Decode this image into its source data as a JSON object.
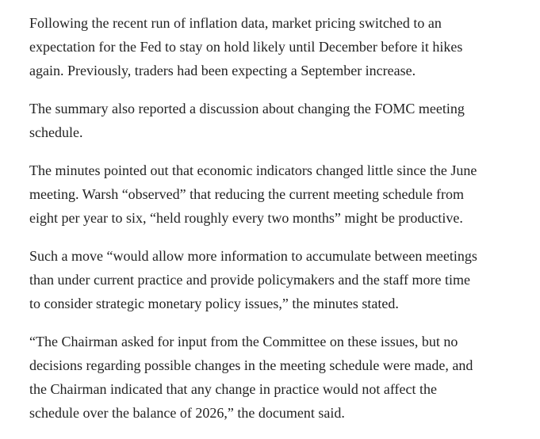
{
  "article": {
    "paragraphs": [
      {
        "lines": [
          "Following the recent run of inflation data, market pricing switched to an",
          "expectation for the Fed to stay on hold likely until December before it hikes",
          "again. Previously, traders had been expecting a September increase."
        ]
      },
      {
        "lines": [
          "The summary also reported a discussion about changing the FOMC meeting",
          "schedule."
        ]
      },
      {
        "lines": [
          "The minutes pointed out that economic indicators changed little since the June",
          "meeting. Warsh “observed” that reducing the current meeting schedule from",
          "eight per year to six, “held roughly every two months” might be productive."
        ]
      },
      {
        "lines": [
          "Such a move “would allow more information to accumulate between meetings",
          "than under current practice and provide policymakers and the staff more time",
          "to consider strategic monetary policy issues,” the minutes stated."
        ]
      },
      {
        "lines": [
          "“The Chairman asked for input from the Committee on these issues, but no",
          "decisions regarding possible changes in the meeting schedule were made, and",
          "the Chairman indicated that any change in practice would not affect the",
          "schedule over the balance of 2026,” the document said."
        ]
      }
    ]
  }
}
